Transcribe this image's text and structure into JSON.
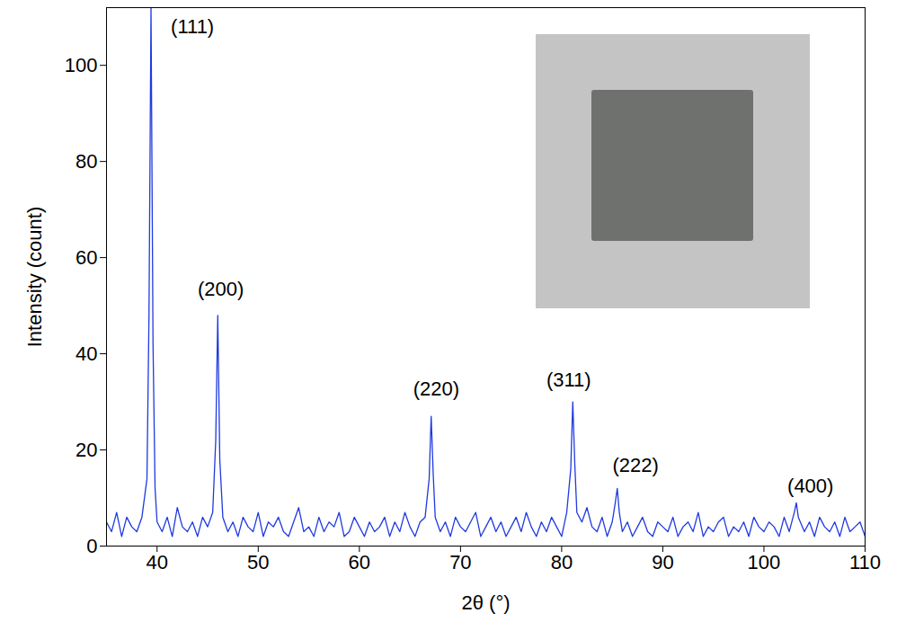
{
  "chart_data": {
    "type": "line",
    "x_label": "2θ (°)",
    "y_label": "Intensity (count)",
    "color": "#1f3ae0",
    "grid": false,
    "xlim": [
      35,
      110
    ],
    "xticks": [
      40,
      50,
      60,
      70,
      80,
      90,
      100,
      110
    ],
    "ylim": [
      0,
      112
    ],
    "yticks": [
      0,
      20,
      40,
      60,
      80,
      100
    ],
    "x": [
      35,
      35.5,
      36,
      36.5,
      37,
      37.5,
      38,
      38.5,
      39,
      39.2,
      39.4,
      39.6,
      39.8,
      40,
      40.5,
      41,
      41.5,
      42,
      42.5,
      43,
      43.5,
      44,
      44.5,
      45,
      45.5,
      45.8,
      46,
      46.2,
      46.5,
      47,
      47.5,
      48,
      48.5,
      49,
      49.5,
      50,
      50.5,
      51,
      51.5,
      52,
      52.5,
      53,
      53.5,
      54,
      54.5,
      55,
      55.5,
      56,
      56.5,
      57,
      57.5,
      58,
      58.5,
      59,
      59.5,
      60,
      60.5,
      61,
      61.5,
      62,
      62.5,
      63,
      63.5,
      64,
      64.5,
      65,
      65.5,
      66,
      66.5,
      66.9,
      67.1,
      67.3,
      67.5,
      68,
      68.5,
      69,
      69.5,
      70,
      70.5,
      71,
      71.5,
      72,
      72.5,
      73,
      73.5,
      74,
      74.5,
      75,
      75.5,
      76,
      76.5,
      77,
      77.5,
      78,
      78.5,
      79,
      79.5,
      80,
      80.5,
      80.9,
      81.1,
      81.3,
      81.5,
      82,
      82.5,
      83,
      83.5,
      84,
      84.5,
      85,
      85.3,
      85.5,
      85.7,
      86,
      86.5,
      87,
      87.5,
      88,
      88.5,
      89,
      89.5,
      90,
      90.5,
      91,
      91.5,
      92,
      92.5,
      93,
      93.5,
      94,
      94.5,
      95,
      95.5,
      96,
      96.5,
      97,
      97.5,
      98,
      98.5,
      99,
      99.5,
      100,
      100.5,
      101,
      101.5,
      102,
      102.5,
      103,
      103.2,
      103.4,
      104,
      104.5,
      105,
      105.5,
      106,
      106.5,
      107,
      107.5,
      108,
      108.5,
      109,
      109.5,
      110
    ],
    "values": [
      5,
      3,
      7,
      2,
      6,
      4,
      3,
      6,
      14,
      48,
      112,
      42,
      12,
      5,
      3,
      6,
      2,
      8,
      4,
      3,
      5,
      2,
      6,
      4,
      7,
      22,
      48,
      18,
      6,
      3,
      5,
      2,
      6,
      4,
      3,
      7,
      2,
      5,
      4,
      6,
      3,
      2,
      5,
      8,
      3,
      4,
      2,
      6,
      3,
      5,
      4,
      7,
      2,
      3,
      6,
      4,
      2,
      5,
      3,
      4,
      6,
      2,
      5,
      3,
      7,
      4,
      2,
      5,
      6,
      14,
      27,
      15,
      6,
      3,
      5,
      2,
      6,
      4,
      3,
      5,
      7,
      2,
      4,
      6,
      3,
      5,
      2,
      4,
      6,
      3,
      7,
      4,
      2,
      5,
      3,
      6,
      4,
      2,
      7,
      16,
      30,
      17,
      7,
      5,
      8,
      4,
      3,
      6,
      2,
      5,
      9,
      12,
      7,
      3,
      5,
      2,
      4,
      6,
      3,
      2,
      5,
      4,
      3,
      6,
      2,
      4,
      5,
      3,
      7,
      2,
      4,
      3,
      5,
      6,
      2,
      4,
      3,
      5,
      2,
      6,
      4,
      3,
      5,
      4,
      2,
      6,
      3,
      7,
      9,
      6,
      3,
      5,
      2,
      6,
      4,
      3,
      5,
      2,
      6,
      3,
      4,
      5,
      2
    ],
    "annotations": [
      {
        "text": "(111)",
        "x": 43.5,
        "y": 108
      },
      {
        "text": "(200)",
        "x": 46.3,
        "y": 53.4
      },
      {
        "text": "(220)",
        "x": 67.6,
        "y": 32.6
      },
      {
        "text": "(311)",
        "x": 80.7,
        "y": 34.5
      },
      {
        "text": "(222)",
        "x": 87.3,
        "y": 16.8
      },
      {
        "text": "(400)",
        "x": 104.6,
        "y": 12.5
      }
    ]
  }
}
